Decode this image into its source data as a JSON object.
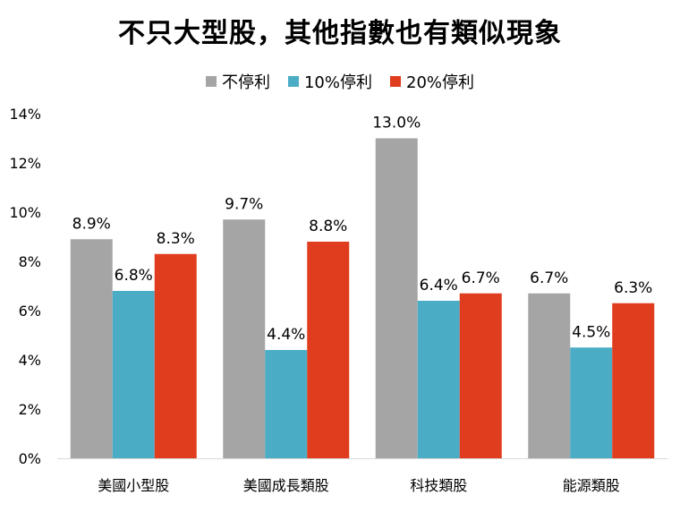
{
  "chart_data": {
    "type": "bar",
    "title": "不只大型股，其他指數也有類似現象",
    "categories": [
      "美國小型股",
      "美國成長類股",
      "科技類股",
      "能源類股"
    ],
    "series": [
      {
        "name": "不停利",
        "color": "#a5a5a5",
        "values": [
          8.9,
          9.7,
          13.0,
          6.7
        ],
        "labels": [
          "8.9%",
          "9.7%",
          "13.0%",
          "6.7%"
        ]
      },
      {
        "name": "10%停利",
        "color": "#4bacc6",
        "values": [
          6.8,
          4.4,
          6.4,
          4.5
        ],
        "labels": [
          "6.8%",
          "4.4%",
          "6.4%",
          "4.5%"
        ]
      },
      {
        "name": "20%停利",
        "color": "#e03c1e",
        "values": [
          8.3,
          8.8,
          6.7,
          6.3
        ],
        "labels": [
          "8.3%",
          "8.8%",
          "6.7%",
          "6.3%"
        ]
      }
    ],
    "ylim": [
      0,
      14
    ],
    "yticks": [
      "0%",
      "2%",
      "4%",
      "6%",
      "8%",
      "10%",
      "12%",
      "14%"
    ],
    "legend_position": "top",
    "grid": false
  }
}
